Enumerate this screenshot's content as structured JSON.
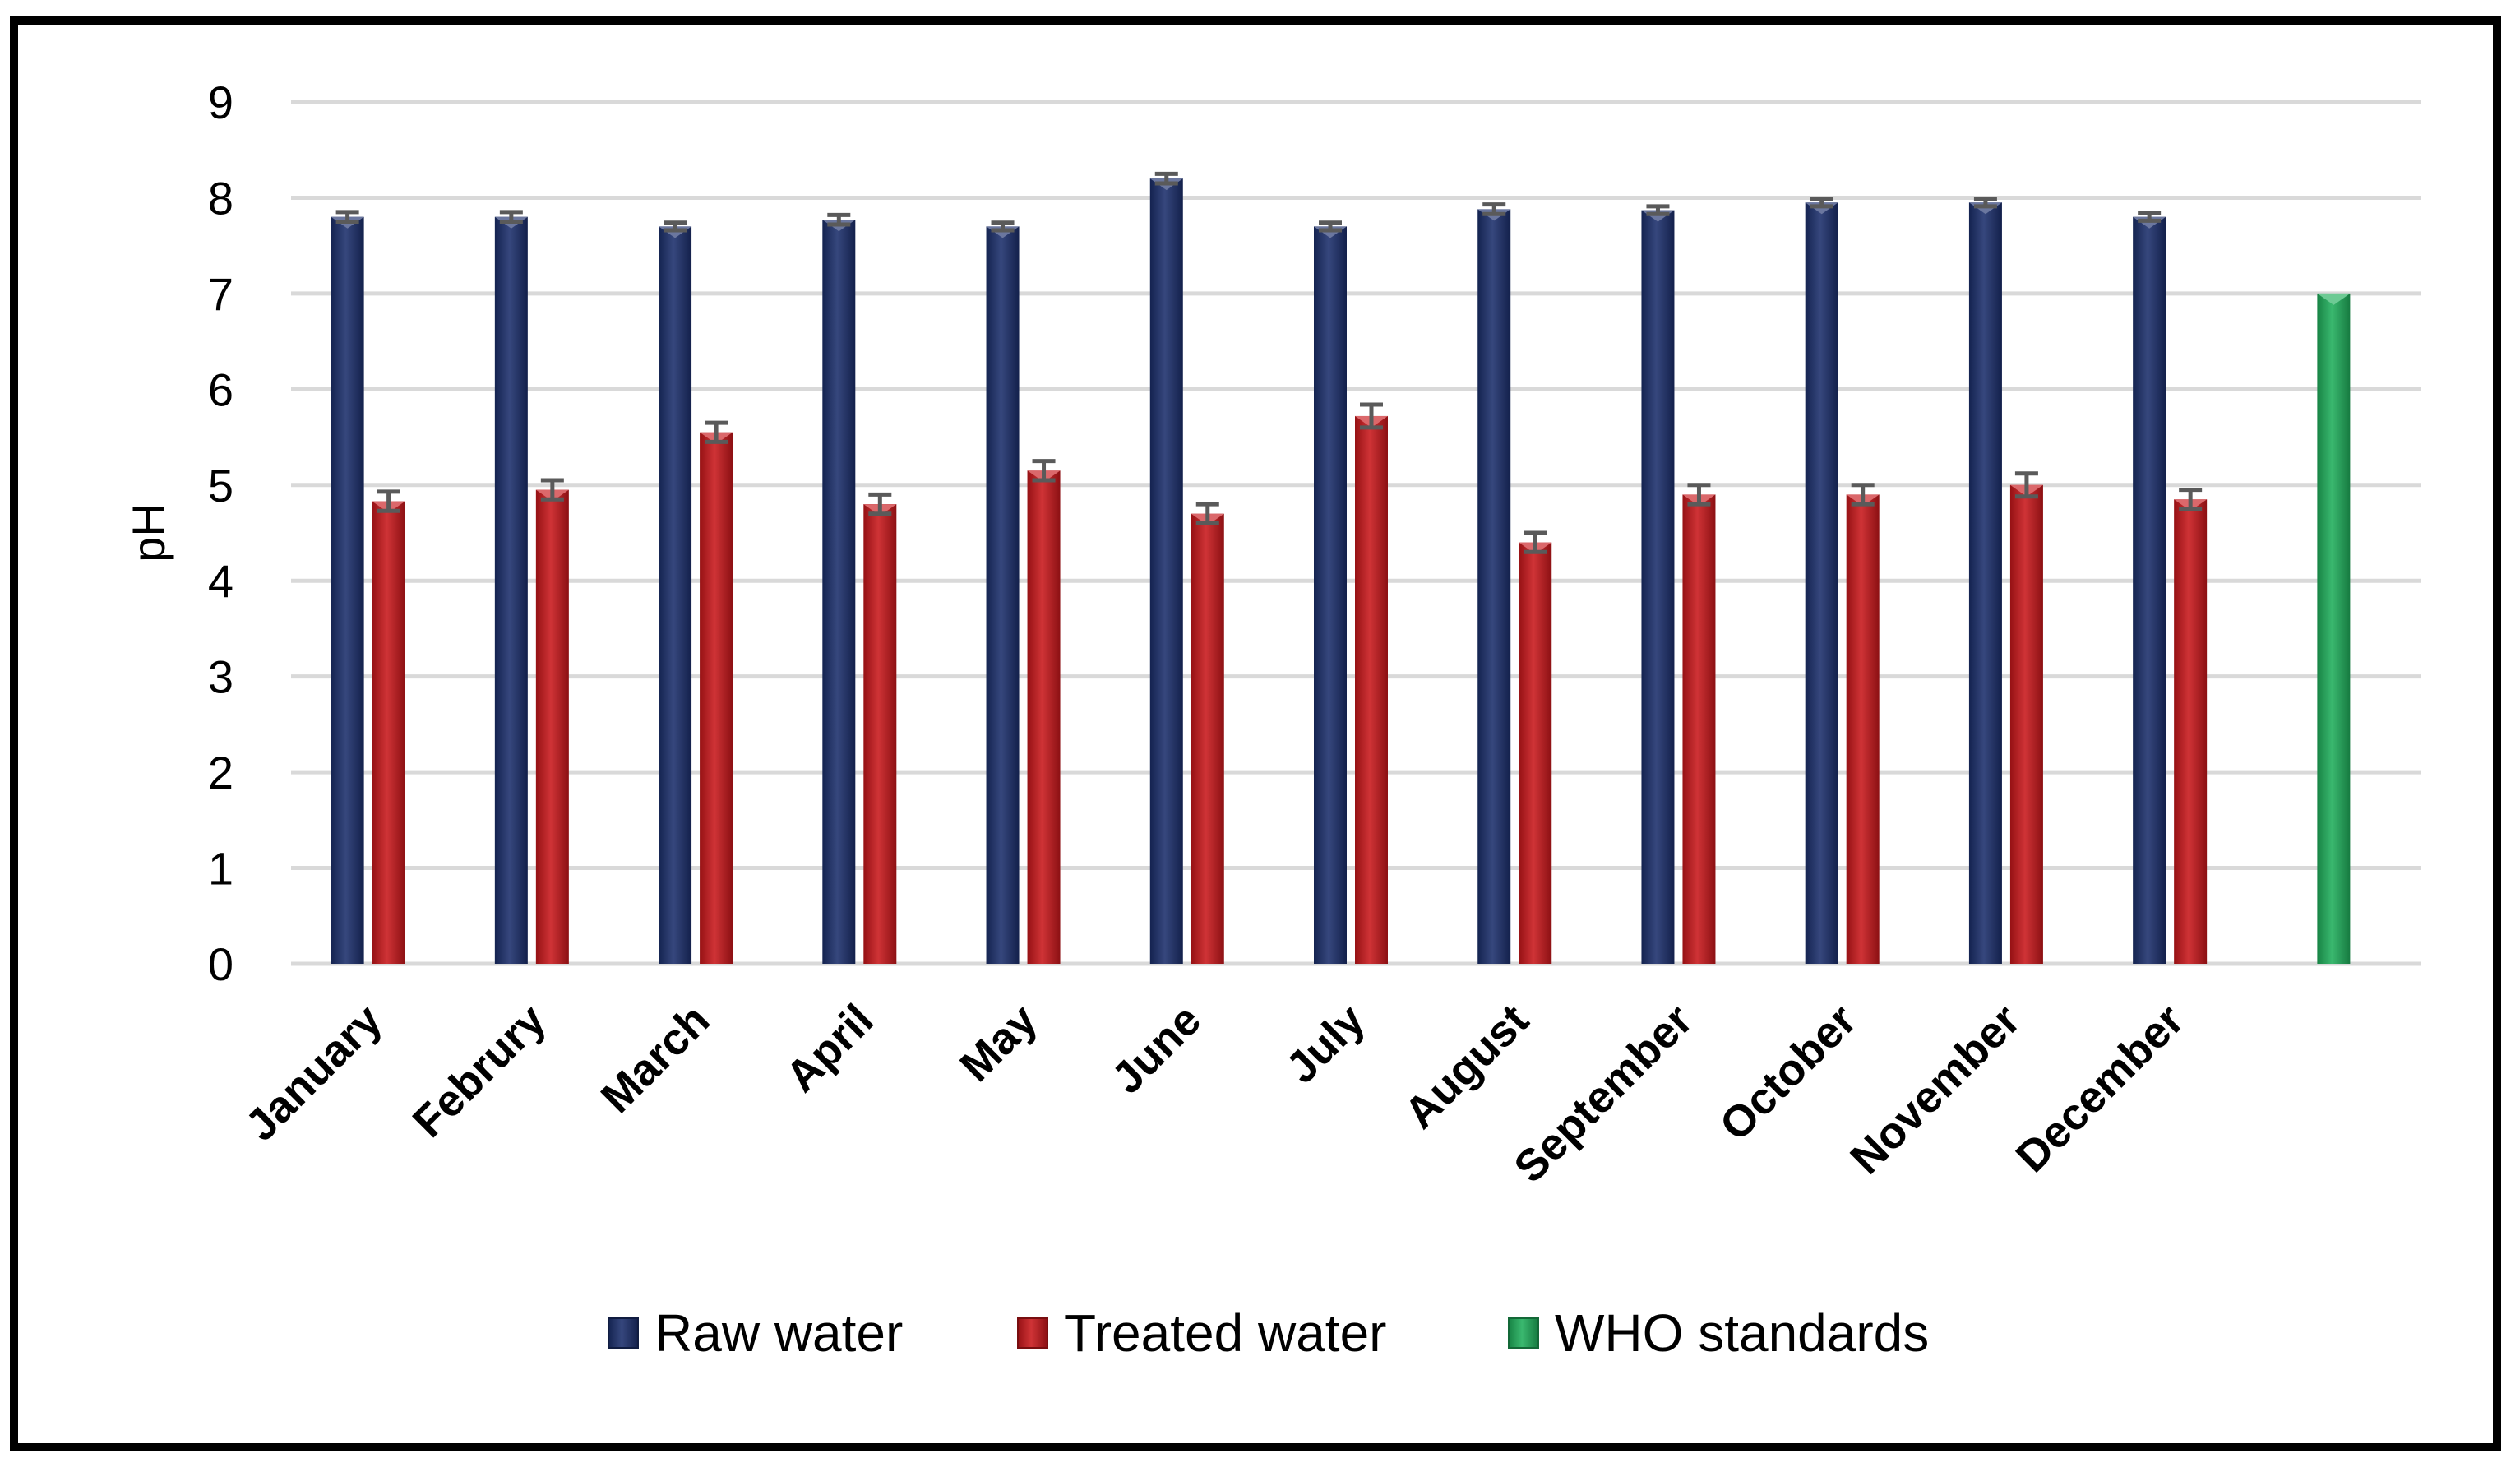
{
  "chart_data": {
    "type": "bar",
    "title": "",
    "xlabel": "",
    "ylabel": "pH",
    "ylim": [
      0,
      9
    ],
    "yticks": [
      "0",
      "1",
      "2",
      "3",
      "4",
      "5",
      "6",
      "7",
      "8",
      "9"
    ],
    "grid": true,
    "legend_position": "bottom",
    "categories": [
      "January",
      "Februry",
      "March",
      "April",
      "May",
      "June",
      "July",
      "August",
      "September",
      "October",
      "November",
      "December",
      ""
    ],
    "series": [
      {
        "name": "Raw water",
        "color": "#1b2e6b",
        "values": [
          7.8,
          7.8,
          7.7,
          7.77,
          7.7,
          8.2,
          7.7,
          7.88,
          7.87,
          7.95,
          7.95,
          7.8,
          null
        ],
        "errors": [
          0.05,
          0.05,
          0.04,
          0.05,
          0.04,
          0.05,
          0.04,
          0.05,
          0.04,
          0.04,
          0.04,
          0.04,
          null
        ]
      },
      {
        "name": "Treated water",
        "color": "#c8171b",
        "values": [
          4.83,
          4.95,
          5.55,
          4.8,
          5.15,
          4.7,
          5.72,
          4.4,
          4.9,
          4.9,
          5.0,
          4.85,
          null
        ],
        "errors": [
          0.1,
          0.1,
          0.1,
          0.1,
          0.1,
          0.1,
          0.12,
          0.1,
          0.1,
          0.1,
          0.12,
          0.1,
          null
        ]
      },
      {
        "name": "WHO standards",
        "color": "#1fae5b",
        "values": [
          null,
          null,
          null,
          null,
          null,
          null,
          null,
          null,
          null,
          null,
          null,
          null,
          7.0
        ],
        "errors": [
          null,
          null,
          null,
          null,
          null,
          null,
          null,
          null,
          null,
          null,
          null,
          null,
          null
        ]
      }
    ]
  }
}
